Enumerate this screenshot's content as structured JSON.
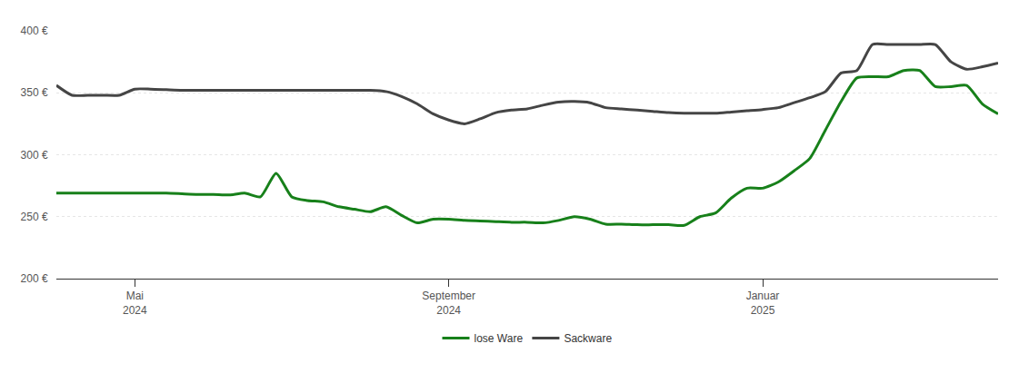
{
  "chart_data": {
    "type": "line",
    "categories": [
      null,
      null,
      null,
      null,
      null,
      "Mai\n2024",
      null,
      null,
      null,
      null,
      null,
      null,
      null,
      null,
      null,
      null,
      null,
      null,
      null,
      null,
      null,
      null,
      null,
      null,
      null,
      "September\n2024",
      null,
      null,
      null,
      null,
      null,
      null,
      null,
      null,
      null,
      null,
      null,
      null,
      null,
      null,
      null,
      null,
      null,
      null,
      null,
      "Januar\n2025",
      null,
      null,
      null,
      null,
      null,
      null,
      null,
      null,
      null,
      null,
      null,
      null,
      null,
      null,
      null
    ],
    "series": [
      {
        "name": "lose Ware",
        "color": "#17801a",
        "values": [
          269,
          269,
          269,
          269,
          269,
          269,
          269,
          269,
          268.5,
          268,
          268,
          267.5,
          269,
          266,
          285,
          266,
          263,
          262,
          258,
          256,
          254,
          258,
          251,
          245,
          248,
          248,
          247,
          246.5,
          246,
          245.5,
          245.5,
          245,
          247,
          250,
          248,
          244,
          244,
          243.5,
          243.5,
          243.5,
          243,
          250,
          253,
          265,
          273,
          273,
          278,
          287,
          297,
          320,
          343,
          362,
          363,
          363,
          368,
          368,
          355,
          355,
          356,
          341,
          333
        ]
      },
      {
        "name": "Sackware",
        "color": "#454545",
        "values": [
          356,
          348,
          348,
          348,
          348,
          353,
          353,
          352.5,
          352,
          352,
          352,
          352,
          352,
          352,
          352,
          352,
          352,
          352,
          352,
          352,
          352,
          351,
          347,
          341,
          333,
          328,
          325,
          329,
          334,
          336,
          337,
          340,
          342.5,
          343,
          342,
          338,
          337,
          336,
          335,
          334,
          333.5,
          333.5,
          333.5,
          334.5,
          335.5,
          336.5,
          338,
          342,
          346,
          351,
          366,
          368,
          389,
          389,
          389,
          389,
          389,
          375,
          369,
          371,
          374
        ]
      }
    ],
    "ylim": [
      200,
      400
    ],
    "yticks": [
      {
        "value": 200,
        "label": "200 €"
      },
      {
        "value": 250,
        "label": "250 €"
      },
      {
        "value": 300,
        "label": "300 €"
      },
      {
        "value": 350,
        "label": "350 €"
      },
      {
        "value": 400,
        "label": "400 €"
      }
    ],
    "grid": true,
    "legend": "bottom"
  }
}
